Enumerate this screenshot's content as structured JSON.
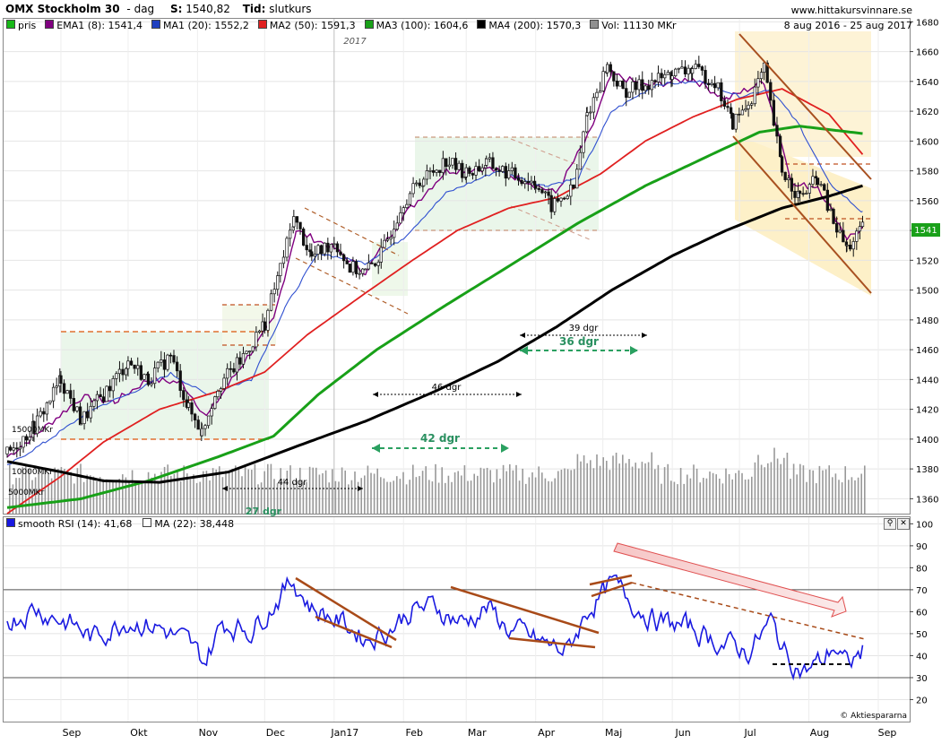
{
  "header": {
    "title": "OMX Stockholm 30",
    "interval": "dag",
    "close_label": "S:",
    "close_value": "1540,82",
    "time_label": "Tid:",
    "time_value": "slutkurs",
    "site": "www.hittakursvinnare.se",
    "date_range": "8 aug 2016 - 25 aug 2017",
    "year_marker": "2017"
  },
  "legend": [
    {
      "label": "pris",
      "color": "#18b818"
    },
    {
      "label": "EMA1 (8): 1541,4",
      "color": "#800080"
    },
    {
      "label": "MA1 (20): 1552,2",
      "color": "#2040c0"
    },
    {
      "label": "MA2 (50): 1591,3",
      "color": "#e02020"
    },
    {
      "label": "MA3 (100): 1604,6",
      "color": "#18a018"
    },
    {
      "label": "MA4 (200): 1570,3",
      "color": "#000000"
    },
    {
      "label": "Vol: 11130 MKr",
      "color": "#909090"
    }
  ],
  "rsi_legend": [
    {
      "label": "smooth RSI (14): 41,68",
      "color": "#1818e0"
    },
    {
      "label": "MA (22): 38,448",
      "color": "#ffffff"
    }
  ],
  "price_badge": "1541",
  "copyright": "© Aktiespararna",
  "volume_labels": [
    "15000MKr",
    "10000MKr",
    "5000MKr"
  ],
  "annotations": {
    "span_44": "44 dgr",
    "span_27": "27 dgr",
    "span_42": "42 dgr",
    "span_46": "46 dgr",
    "span_39": "39 dgr",
    "span_36": "36 dgr"
  },
  "chart_data": [
    {
      "type": "line",
      "title": "OMX Stockholm 30",
      "x_ticks": [
        "Sep",
        "Okt",
        "Nov",
        "Dec",
        "Jan17",
        "Feb",
        "Mar",
        "Apr",
        "Maj",
        "Jun",
        "Jul",
        "Aug",
        "Sep"
      ],
      "y_ticks": [
        1360,
        1380,
        1400,
        1420,
        1440,
        1460,
        1480,
        1500,
        1520,
        1540,
        1560,
        1580,
        1600,
        1620,
        1640,
        1660,
        1680
      ],
      "ylim": [
        1350,
        1682
      ],
      "grid": true,
      "series": [
        {
          "name": "pris",
          "points": [
            [
              "2016-08-08",
              1390
            ],
            [
              "2016-08-20",
              1408
            ],
            [
              "2016-09-01",
              1440
            ],
            [
              "2016-09-10",
              1412
            ],
            [
              "2016-09-20",
              1430
            ],
            [
              "2016-10-01",
              1452
            ],
            [
              "2016-10-10",
              1440
            ],
            [
              "2016-10-20",
              1456
            ],
            [
              "2016-10-28",
              1420
            ],
            [
              "2016-11-03",
              1405
            ],
            [
              "2016-11-10",
              1436
            ],
            [
              "2016-11-20",
              1452
            ],
            [
              "2016-12-01",
              1478
            ],
            [
              "2016-12-08",
              1515
            ],
            [
              "2016-12-14",
              1548
            ],
            [
              "2016-12-22",
              1522
            ],
            [
              "2017-01-01",
              1533
            ],
            [
              "2017-01-08",
              1515
            ],
            [
              "2017-01-15",
              1512
            ],
            [
              "2017-01-22",
              1524
            ],
            [
              "2017-02-01",
              1560
            ],
            [
              "2017-02-10",
              1575
            ],
            [
              "2017-02-20",
              1587
            ],
            [
              "2017-03-01",
              1578
            ],
            [
              "2017-03-10",
              1585
            ],
            [
              "2017-03-20",
              1578
            ],
            [
              "2017-04-01",
              1572
            ],
            [
              "2017-04-08",
              1556
            ],
            [
              "2017-04-18",
              1568
            ],
            [
              "2017-04-24",
              1618
            ],
            [
              "2017-05-03",
              1650
            ],
            [
              "2017-05-10",
              1633
            ],
            [
              "2017-05-20",
              1638
            ],
            [
              "2017-06-01",
              1645
            ],
            [
              "2017-06-10",
              1648
            ],
            [
              "2017-06-20",
              1640
            ],
            [
              "2017-06-28",
              1612
            ],
            [
              "2017-07-05",
              1625
            ],
            [
              "2017-07-12",
              1648
            ],
            [
              "2017-07-20",
              1580
            ],
            [
              "2017-07-28",
              1562
            ],
            [
              "2017-08-05",
              1575
            ],
            [
              "2017-08-12",
              1545
            ],
            [
              "2017-08-18",
              1528
            ],
            [
              "2017-08-25",
              1541
            ]
          ]
        },
        {
          "name": "EMA1 (8)",
          "points": [
            [
              "2016-08-08",
              1388
            ],
            [
              "2016-08-25",
              1408
            ],
            [
              "2016-09-10",
              1428
            ],
            [
              "2016-09-25",
              1425
            ],
            [
              "2016-10-10",
              1440
            ],
            [
              "2016-10-25",
              1438
            ],
            [
              "2016-11-05",
              1415
            ],
            [
              "2016-11-20",
              1448
            ],
            [
              "2016-12-05",
              1480
            ],
            [
              "2016-12-15",
              1540
            ],
            [
              "2017-01-01",
              1528
            ],
            [
              "2017-01-15",
              1512
            ],
            [
              "2017-02-01",
              1550
            ],
            [
              "2017-02-20",
              1580
            ],
            [
              "2017-03-10",
              1582
            ],
            [
              "2017-03-25",
              1575
            ],
            [
              "2017-04-10",
              1565
            ],
            [
              "2017-04-25",
              1605
            ],
            [
              "2017-05-05",
              1645
            ],
            [
              "2017-05-20",
              1637
            ],
            [
              "2017-06-10",
              1642
            ],
            [
              "2017-06-25",
              1628
            ],
            [
              "2017-07-12",
              1640
            ],
            [
              "2017-07-25",
              1570
            ],
            [
              "2017-08-05",
              1570
            ],
            [
              "2017-08-18",
              1535
            ],
            [
              "2017-08-25",
              1541
            ]
          ]
        },
        {
          "name": "MA1 (20)",
          "points": [
            [
              "2016-08-08",
              1382
            ],
            [
              "2016-08-25",
              1398
            ],
            [
              "2016-09-15",
              1420
            ],
            [
              "2016-10-01",
              1430
            ],
            [
              "2016-10-20",
              1444
            ],
            [
              "2016-11-05",
              1430
            ],
            [
              "2016-11-25",
              1440
            ],
            [
              "2016-12-10",
              1488
            ],
            [
              "2016-12-25",
              1525
            ],
            [
              "2017-01-15",
              1518
            ],
            [
              "2017-02-01",
              1535
            ],
            [
              "2017-02-20",
              1565
            ],
            [
              "2017-03-15",
              1580
            ],
            [
              "2017-04-05",
              1570
            ],
            [
              "2017-04-20",
              1575
            ],
            [
              "2017-05-05",
              1620
            ],
            [
              "2017-05-25",
              1638
            ],
            [
              "2017-06-15",
              1640
            ],
            [
              "2017-07-01",
              1630
            ],
            [
              "2017-07-15",
              1635
            ],
            [
              "2017-07-28",
              1610
            ],
            [
              "2017-08-10",
              1572
            ],
            [
              "2017-08-25",
              1552
            ]
          ]
        },
        {
          "name": "MA2 (50)",
          "points": [
            [
              "2016-08-08",
              1350
            ],
            [
              "2016-09-01",
              1375
            ],
            [
              "2016-09-20",
              1398
            ],
            [
              "2016-10-15",
              1420
            ],
            [
              "2016-11-10",
              1432
            ],
            [
              "2016-12-01",
              1445
            ],
            [
              "2016-12-20",
              1470
            ],
            [
              "2017-01-15",
              1498
            ],
            [
              "2017-02-05",
              1520
            ],
            [
              "2017-02-25",
              1540
            ],
            [
              "2017-03-20",
              1555
            ],
            [
              "2017-04-10",
              1562
            ],
            [
              "2017-04-30",
              1578
            ],
            [
              "2017-05-20",
              1600
            ],
            [
              "2017-06-10",
              1616
            ],
            [
              "2017-06-30",
              1628
            ],
            [
              "2017-07-20",
              1635
            ],
            [
              "2017-08-10",
              1618
            ],
            [
              "2017-08-25",
              1591
            ]
          ]
        },
        {
          "name": "MA3 (100)",
          "points": [
            [
              "2016-08-08",
              1354
            ],
            [
              "2016-09-10",
              1360
            ],
            [
              "2016-10-10",
              1372
            ],
            [
              "2016-11-10",
              1388
            ],
            [
              "2016-12-05",
              1402
            ],
            [
              "2016-12-25",
              1430
            ],
            [
              "2017-01-20",
              1460
            ],
            [
              "2017-02-20",
              1490
            ],
            [
              "2017-03-20",
              1516
            ],
            [
              "2017-04-20",
              1545
            ],
            [
              "2017-05-20",
              1570
            ],
            [
              "2017-06-20",
              1592
            ],
            [
              "2017-07-10",
              1606
            ],
            [
              "2017-07-28",
              1610
            ],
            [
              "2017-08-25",
              1605
            ]
          ]
        },
        {
          "name": "MA4 (200)",
          "points": [
            [
              "2016-08-08",
              1385
            ],
            [
              "2016-09-01",
              1378
            ],
            [
              "2016-09-20",
              1372
            ],
            [
              "2016-10-15",
              1371
            ],
            [
              "2016-11-15",
              1378
            ],
            [
              "2016-12-15",
              1395
            ],
            [
              "2017-01-15",
              1412
            ],
            [
              "2017-02-15",
              1432
            ],
            [
              "2017-03-15",
              1452
            ],
            [
              "2017-04-10",
              1475
            ],
            [
              "2017-05-05",
              1500
            ],
            [
              "2017-06-01",
              1523
            ],
            [
              "2017-06-25",
              1540
            ],
            [
              "2017-07-20",
              1555
            ],
            [
              "2017-08-10",
              1563
            ],
            [
              "2017-08-25",
              1570
            ]
          ]
        }
      ],
      "volume_ylim_mkr": [
        0,
        20000
      ]
    },
    {
      "type": "line",
      "x_ticks": [
        "Sep",
        "Okt",
        "Nov",
        "Dec",
        "Jan17",
        "Feb",
        "Mar",
        "Apr",
        "Maj",
        "Jun",
        "Jul",
        "Aug",
        "Sep"
      ],
      "y_ticks": [
        20,
        30,
        40,
        50,
        60,
        70,
        80,
        90,
        100
      ],
      "ylim": [
        10,
        103
      ],
      "reference_lines": [
        30,
        70
      ],
      "series": [
        {
          "name": "smooth RSI (14)",
          "points": [
            [
              "2016-08-08",
              56
            ],
            [
              "2016-08-20",
              62
            ],
            [
              "2016-09-05",
              55
            ],
            [
              "2016-09-15",
              48
            ],
            [
              "2016-10-01",
              57
            ],
            [
              "2016-10-15",
              53
            ],
            [
              "2016-10-28",
              45
            ],
            [
              "2016-11-04",
              37
            ],
            [
              "2016-11-12",
              55
            ],
            [
              "2016-11-25",
              52
            ],
            [
              "2016-12-08",
              68
            ],
            [
              "2016-12-14",
              74
            ],
            [
              "2016-12-22",
              62
            ],
            [
              "2017-01-05",
              55
            ],
            [
              "2017-01-15",
              48
            ],
            [
              "2017-01-25",
              52
            ],
            [
              "2017-02-05",
              61
            ],
            [
              "2017-02-15",
              62
            ],
            [
              "2017-02-28",
              55
            ],
            [
              "2017-03-10",
              62
            ],
            [
              "2017-03-20",
              52
            ],
            [
              "2017-04-05",
              45
            ],
            [
              "2017-04-15",
              42
            ],
            [
              "2017-04-25",
              62
            ],
            [
              "2017-05-05",
              72
            ],
            [
              "2017-05-15",
              64
            ],
            [
              "2017-05-25",
              56
            ],
            [
              "2017-06-10",
              52
            ],
            [
              "2017-06-25",
              45
            ],
            [
              "2017-07-05",
              42
            ],
            [
              "2017-07-15",
              55
            ],
            [
              "2017-07-22",
              40
            ],
            [
              "2017-07-30",
              33
            ],
            [
              "2017-08-08",
              38
            ],
            [
              "2017-08-12",
              45
            ],
            [
              "2017-08-18",
              35
            ],
            [
              "2017-08-25",
              42
            ]
          ]
        }
      ]
    }
  ]
}
